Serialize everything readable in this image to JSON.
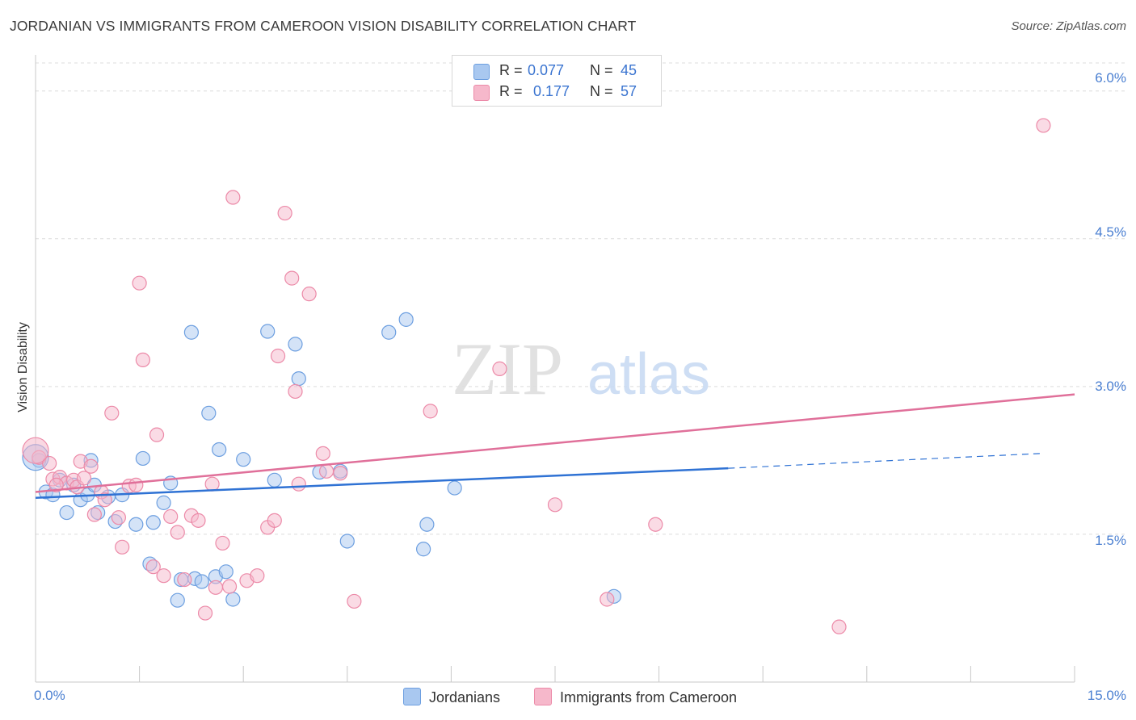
{
  "header": {
    "title": "JORDANIAN VS IMMIGRANTS FROM CAMEROON VISION DISABILITY CORRELATION CHART",
    "source": "Source: ZipAtlas.com"
  },
  "watermark": {
    "zip": "ZIP",
    "atlas": "atlas"
  },
  "legend": {
    "r_label": "R =",
    "n_label": "N =",
    "rows": [
      {
        "r": "0.077",
        "n": "45",
        "color": "#a9c8f0"
      },
      {
        "r": "0.177",
        "n": "57",
        "color": "#f6b8cb"
      }
    ]
  },
  "colors": {
    "jordanians_fill": "#a9c8f0",
    "jordanians_stroke": "#6d9fe0",
    "jordanians_line": "#2f72d4",
    "cameroon_fill": "#f6b8cb",
    "cameroon_stroke": "#ec8aa8",
    "cameroon_line": "#e0709a",
    "grid": "#dcdcdc",
    "tick_label": "#4a7fd1"
  },
  "chart_data": {
    "type": "scatter",
    "title": "JORDANIAN VS IMMIGRANTS FROM CAMEROON VISION DISABILITY CORRELATION CHART",
    "xlabel": "",
    "ylabel": "Vision Disability",
    "xlim": [
      0,
      15
    ],
    "ylim": [
      0,
      6.35
    ],
    "x_tick_labels": [
      "0.0%",
      "15.0%"
    ],
    "y_ticks": [
      1.5,
      3.0,
      4.5,
      6.0
    ],
    "y_tick_labels": [
      "1.5%",
      "3.0%",
      "4.5%",
      "6.0%"
    ],
    "grid": "horizontal dashed",
    "legend_position": "top-center",
    "series": [
      {
        "name": "Jordanians",
        "r": 0.077,
        "n": 45,
        "trend": {
          "x0": 0.0,
          "y0": 1.87,
          "x1": 10.0,
          "y1": 2.17,
          "dash_x1": 14.5,
          "dash_y1": 2.32
        },
        "points": [
          [
            0.05,
            2.25
          ],
          [
            0.15,
            1.93
          ],
          [
            0.25,
            1.9
          ],
          [
            0.35,
            2.05
          ],
          [
            0.45,
            1.72
          ],
          [
            0.55,
            2.0
          ],
          [
            0.65,
            1.85
          ],
          [
            0.75,
            1.9
          ],
          [
            0.8,
            2.25
          ],
          [
            0.85,
            2.0
          ],
          [
            0.9,
            1.72
          ],
          [
            1.05,
            1.88
          ],
          [
            1.15,
            1.63
          ],
          [
            1.25,
            1.9
          ],
          [
            1.45,
            1.6
          ],
          [
            1.55,
            2.27
          ],
          [
            1.65,
            1.2
          ],
          [
            1.7,
            1.62
          ],
          [
            1.85,
            1.82
          ],
          [
            1.95,
            2.02
          ],
          [
            2.05,
            0.83
          ],
          [
            2.1,
            1.04
          ],
          [
            2.25,
            3.55
          ],
          [
            2.3,
            1.05
          ],
          [
            2.4,
            1.02
          ],
          [
            2.5,
            2.73
          ],
          [
            2.6,
            1.07
          ],
          [
            2.65,
            2.36
          ],
          [
            2.75,
            1.12
          ],
          [
            2.85,
            0.84
          ],
          [
            3.0,
            2.26
          ],
          [
            3.35,
            3.56
          ],
          [
            3.45,
            2.05
          ],
          [
            3.75,
            3.43
          ],
          [
            3.8,
            3.08
          ],
          [
            4.1,
            2.13
          ],
          [
            4.4,
            2.14
          ],
          [
            4.5,
            1.43
          ],
          [
            5.1,
            3.55
          ],
          [
            5.35,
            3.68
          ],
          [
            5.6,
            1.35
          ],
          [
            5.65,
            1.6
          ],
          [
            6.05,
            1.97
          ],
          [
            8.35,
            0.87
          ],
          [
            0.0,
            2.28
          ]
        ]
      },
      {
        "name": "Immigrants from Cameroon",
        "r": 0.177,
        "n": 57,
        "trend": {
          "x0": 0.0,
          "y0": 1.93,
          "x1": 15.0,
          "y1": 2.92
        },
        "points": [
          [
            0.05,
            2.28
          ],
          [
            0.2,
            2.22
          ],
          [
            0.25,
            2.06
          ],
          [
            0.35,
            2.08
          ],
          [
            0.45,
            2.02
          ],
          [
            0.55,
            2.05
          ],
          [
            0.6,
            1.98
          ],
          [
            0.65,
            2.24
          ],
          [
            0.7,
            2.07
          ],
          [
            0.8,
            2.19
          ],
          [
            0.85,
            1.7
          ],
          [
            0.95,
            1.93
          ],
          [
            1.0,
            1.85
          ],
          [
            1.1,
            2.73
          ],
          [
            1.2,
            1.67
          ],
          [
            1.25,
            1.37
          ],
          [
            1.35,
            1.99
          ],
          [
            1.45,
            2.0
          ],
          [
            1.5,
            4.05
          ],
          [
            1.55,
            3.27
          ],
          [
            1.7,
            1.17
          ],
          [
            1.75,
            2.51
          ],
          [
            1.85,
            1.08
          ],
          [
            1.95,
            1.68
          ],
          [
            2.05,
            1.52
          ],
          [
            2.15,
            1.04
          ],
          [
            2.25,
            1.69
          ],
          [
            2.35,
            1.64
          ],
          [
            2.45,
            0.7
          ],
          [
            2.55,
            2.01
          ],
          [
            2.6,
            0.96
          ],
          [
            2.7,
            1.41
          ],
          [
            2.8,
            0.97
          ],
          [
            2.85,
            4.92
          ],
          [
            3.05,
            1.03
          ],
          [
            3.2,
            1.08
          ],
          [
            3.35,
            1.57
          ],
          [
            3.45,
            1.64
          ],
          [
            3.5,
            3.31
          ],
          [
            3.6,
            4.76
          ],
          [
            3.7,
            4.1
          ],
          [
            3.75,
            2.95
          ],
          [
            3.8,
            2.01
          ],
          [
            3.95,
            3.94
          ],
          [
            4.15,
            2.32
          ],
          [
            4.2,
            2.14
          ],
          [
            4.4,
            2.12
          ],
          [
            4.6,
            0.82
          ],
          [
            5.7,
            2.75
          ],
          [
            6.7,
            3.18
          ],
          [
            7.5,
            1.8
          ],
          [
            8.25,
            0.84
          ],
          [
            8.95,
            1.6
          ],
          [
            11.6,
            0.56
          ],
          [
            14.55,
            5.65
          ],
          [
            0.0,
            2.35
          ],
          [
            0.3,
            2.0
          ]
        ]
      }
    ]
  },
  "bottom_legend": [
    "Jordanians",
    "Immigrants from Cameroon"
  ]
}
